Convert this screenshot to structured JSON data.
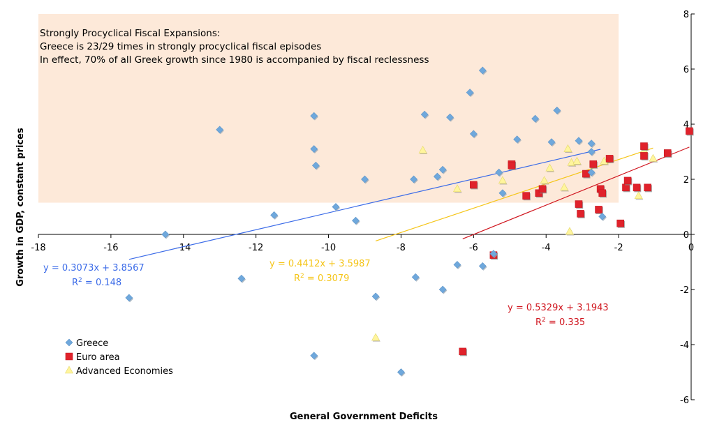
{
  "chart_data": {
    "type": "scatter",
    "title": "",
    "xlabel": "General Government Deficits",
    "ylabel": "Growth in GDP, constant prices",
    "xlim": [
      -18,
      0
    ],
    "ylim": [
      -6,
      8
    ],
    "x_ticks": [
      -18,
      -16,
      -14,
      -12,
      -10,
      -8,
      -6,
      -4,
      -2,
      0
    ],
    "y_ticks": [
      8,
      6,
      4,
      2,
      0,
      -2,
      -4,
      -6
    ],
    "x_tick_labels": [
      "-18",
      "-16",
      "-14",
      "-12",
      "-10",
      "-8",
      "-6",
      "-4",
      "-2",
      "0"
    ],
    "y_tick_labels": [
      "8",
      "6",
      "4",
      "2",
      "0",
      "-2",
      "-4",
      "-6"
    ],
    "shaded_region": {
      "x": [
        -18,
        -2
      ],
      "y": [
        1.15,
        8
      ]
    },
    "annotation": [
      "Strongly Procyclical Fiscal Expansions:",
      "Greece is 23/29 times in strongly procyclical fiscal episodes",
      "In effect, 70% of all Greek growth since 1980 is accompanied by fiscal reclessness"
    ],
    "series": [
      {
        "name": "Greece",
        "color": "#6fa8dc",
        "marker": "diamond",
        "points": [
          [
            -14.5,
            0.0
          ],
          [
            -13.0,
            3.8
          ],
          [
            -11.5,
            0.7
          ],
          [
            -15.5,
            -2.3
          ],
          [
            -12.4,
            -1.6
          ],
          [
            -10.4,
            4.3
          ],
          [
            -10.4,
            3.1
          ],
          [
            -10.35,
            2.5
          ],
          [
            -10.4,
            -4.4
          ],
          [
            -9.8,
            1.0
          ],
          [
            -9.25,
            0.5
          ],
          [
            -9.0,
            2.0
          ],
          [
            -8.7,
            -2.25
          ],
          [
            -8.0,
            -5.0
          ],
          [
            -7.65,
            2.0
          ],
          [
            -7.6,
            -1.55
          ],
          [
            -7.35,
            4.35
          ],
          [
            -7.0,
            2.1
          ],
          [
            -6.85,
            2.35
          ],
          [
            -6.85,
            -2.0
          ],
          [
            -6.65,
            4.25
          ],
          [
            -6.45,
            -1.1
          ],
          [
            -6.1,
            5.15
          ],
          [
            -6.0,
            3.65
          ],
          [
            -5.75,
            5.95
          ],
          [
            -5.75,
            -1.15
          ],
          [
            -5.3,
            2.25
          ],
          [
            -5.2,
            1.5
          ],
          [
            -4.8,
            3.45
          ],
          [
            -4.3,
            4.2
          ],
          [
            -3.7,
            4.5
          ],
          [
            -3.85,
            3.35
          ],
          [
            -3.1,
            3.4
          ],
          [
            -2.75,
            3.3
          ],
          [
            -2.75,
            3.0
          ],
          [
            -2.75,
            2.25
          ],
          [
            -2.45,
            0.65
          ],
          [
            -5.45,
            -0.7
          ]
        ]
      },
      {
        "name": "Euro area",
        "color": "#e0222b",
        "marker": "square",
        "points": [
          [
            -6.0,
            1.8
          ],
          [
            -5.45,
            -0.75
          ],
          [
            -6.3,
            -4.25
          ],
          [
            -4.95,
            2.55
          ],
          [
            -4.95,
            2.5
          ],
          [
            -4.55,
            1.4
          ],
          [
            -4.2,
            1.5
          ],
          [
            -4.1,
            1.65
          ],
          [
            -3.1,
            1.1
          ],
          [
            -3.05,
            0.75
          ],
          [
            -2.9,
            2.2
          ],
          [
            -2.7,
            2.55
          ],
          [
            -2.55,
            0.9
          ],
          [
            -2.5,
            1.65
          ],
          [
            -2.45,
            1.5
          ],
          [
            -2.25,
            2.75
          ],
          [
            -1.95,
            0.4
          ],
          [
            -1.8,
            1.7
          ],
          [
            -1.75,
            1.95
          ],
          [
            -1.5,
            1.7
          ],
          [
            -1.3,
            2.85
          ],
          [
            -1.3,
            3.2
          ],
          [
            -1.2,
            1.7
          ],
          [
            -0.65,
            2.95
          ],
          [
            -0.05,
            3.75
          ]
        ]
      },
      {
        "name": "Advanced Economies",
        "color": "#fff59d",
        "marker": "triangle",
        "points": [
          [
            -8.7,
            -3.75
          ],
          [
            -7.4,
            3.05
          ],
          [
            -6.45,
            1.65
          ],
          [
            -5.2,
            1.95
          ],
          [
            -4.05,
            1.95
          ],
          [
            -3.9,
            2.4
          ],
          [
            -3.5,
            1.7
          ],
          [
            -3.4,
            3.1
          ],
          [
            -3.35,
            0.1
          ],
          [
            -3.3,
            2.6
          ],
          [
            -3.15,
            2.65
          ],
          [
            -2.4,
            2.65
          ],
          [
            -1.45,
            1.4
          ],
          [
            -1.3,
            3.05
          ],
          [
            -1.05,
            2.75
          ]
        ]
      }
    ],
    "trendlines": [
      {
        "series": "Greece",
        "color": "#3b6be8",
        "slope": 0.3073,
        "intercept": 3.8567,
        "x_range": [
          -15.5,
          -2.5
        ],
        "equation": "y = 0.3073x + 3.8567",
        "r2_prefix": "R",
        "r2_power": "2",
        "r2_value": " = 0.148",
        "label_color": "#3b6be8"
      },
      {
        "series": "Advanced Economies",
        "color": "#f5c518",
        "slope": 0.4412,
        "intercept": 3.5987,
        "x_range": [
          -8.7,
          -1.05
        ],
        "equation": "y = 0.4412x + 3.5987",
        "r2_prefix": "R",
        "r2_power": "2",
        "r2_value": " = 0.3079",
        "label_color": "#f5c518"
      },
      {
        "series": "Euro area",
        "color": "#d0161f",
        "slope": 0.5329,
        "intercept": 3.1943,
        "x_range": [
          -6.3,
          -0.05
        ],
        "equation": "y = 0.5329x + 3.1943",
        "r2_prefix": "R",
        "r2_power": "2",
        "r2_value": " = 0.335",
        "label_color": "#d0161f"
      }
    ],
    "legend": [
      "Greece",
      "Euro area",
      "Advanced Economies"
    ],
    "legend_position": "bottom-left",
    "colors": {
      "shade": "#fde9d9",
      "axis": "#000000"
    }
  }
}
